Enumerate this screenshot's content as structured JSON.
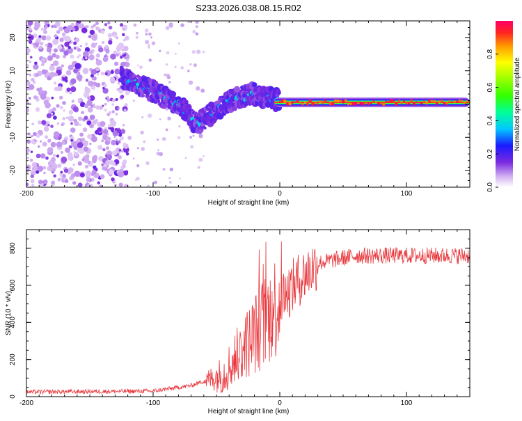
{
  "title": "S233.2026.038.08.15.R02",
  "chart_data": [
    {
      "type": "heatmap",
      "xlabel": "Height of straight line (km)",
      "ylabel": "Frequency (Hz)",
      "xlim": [
        -200,
        150
      ],
      "ylim": [
        -25,
        25
      ],
      "xticks": [
        -200,
        -100,
        0,
        100
      ],
      "yticks": [
        -20,
        -10,
        0,
        10,
        20
      ],
      "colorbar": {
        "label": "Normalized spectral amplitude",
        "range": [
          0,
          1
        ],
        "ticks": [
          0.0,
          0.2,
          0.4,
          0.6,
          0.8
        ]
      },
      "features": {
        "noise_region_x": [
          -200,
          -120
        ],
        "descending_trace": [
          {
            "x": -125,
            "y": 8
          },
          {
            "x": -100,
            "y": 4
          },
          {
            "x": -80,
            "y": 0
          },
          {
            "x": -65,
            "y": -6
          },
          {
            "x": -40,
            "y": 1
          },
          {
            "x": -20,
            "y": 3
          },
          {
            "x": 0,
            "y": 1
          }
        ],
        "stable_carrier": {
          "x": [
            0,
            150
          ],
          "y": 0.5,
          "amplitude": 0.95
        }
      }
    },
    {
      "type": "line",
      "xlabel": "Height of straight line (km)",
      "ylabel": "SNR (10 * v/v)",
      "xlim": [
        -200,
        150
      ],
      "ylim": [
        0,
        900
      ],
      "xticks": [
        -200,
        -100,
        0,
        100
      ],
      "yticks": [
        0,
        200,
        400,
        600,
        800
      ],
      "series": [
        {
          "name": "SNR",
          "color": "#e8383d",
          "profile": [
            {
              "x": -200,
              "y": 25
            },
            {
              "x": -100,
              "y": 30
            },
            {
              "x": -70,
              "y": 60
            },
            {
              "x": -45,
              "y": 120
            },
            {
              "x": -30,
              "y": 250
            },
            {
              "x": -15,
              "y": 380
            },
            {
              "x": 0,
              "y": 520
            },
            {
              "x": 15,
              "y": 630
            },
            {
              "x": 30,
              "y": 720
            },
            {
              "x": 60,
              "y": 760
            },
            {
              "x": 150,
              "y": 760
            }
          ]
        }
      ]
    }
  ]
}
